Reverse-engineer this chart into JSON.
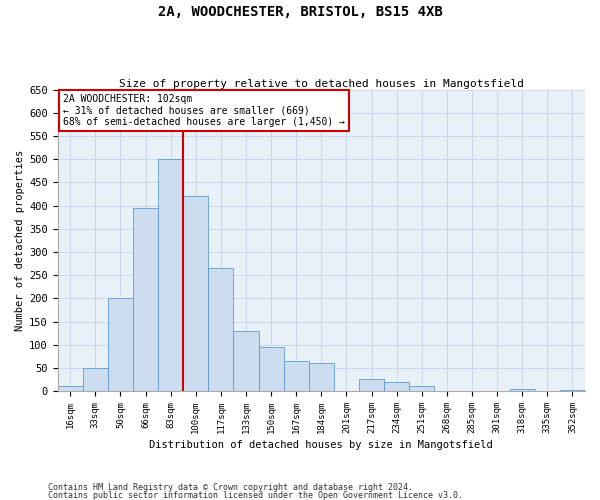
{
  "title_line1": "2A, WOODCHESTER, BRISTOL, BS15 4XB",
  "title_line2": "Size of property relative to detached houses in Mangotsfield",
  "xlabel": "Distribution of detached houses by size in Mangotsfield",
  "ylabel": "Number of detached properties",
  "categories": [
    "16sqm",
    "33sqm",
    "50sqm",
    "66sqm",
    "83sqm",
    "100sqm",
    "117sqm",
    "133sqm",
    "150sqm",
    "167sqm",
    "184sqm",
    "201sqm",
    "217sqm",
    "234sqm",
    "251sqm",
    "268sqm",
    "285sqm",
    "301sqm",
    "318sqm",
    "335sqm",
    "352sqm"
  ],
  "values": [
    10,
    50,
    200,
    395,
    500,
    420,
    265,
    130,
    95,
    65,
    60,
    0,
    25,
    20,
    10,
    0,
    0,
    0,
    5,
    0,
    2
  ],
  "bar_color": "#ccddf0",
  "bar_edge_color": "#5b9bd5",
  "vline_color": "#cc0000",
  "vline_x_index": 5,
  "annotation_text": "2A WOODCHESTER: 102sqm\n← 31% of detached houses are smaller (669)\n68% of semi-detached houses are larger (1,450) →",
  "annotation_box_color": "#ffffff",
  "annotation_box_edge_color": "#cc0000",
  "ylim": [
    0,
    650
  ],
  "yticks": [
    0,
    50,
    100,
    150,
    200,
    250,
    300,
    350,
    400,
    450,
    500,
    550,
    600,
    650
  ],
  "grid_color": "#c8d8e8",
  "bg_color": "#e8f0f8",
  "footer_line1": "Contains HM Land Registry data © Crown copyright and database right 2024.",
  "footer_line2": "Contains public sector information licensed under the Open Government Licence v3.0."
}
